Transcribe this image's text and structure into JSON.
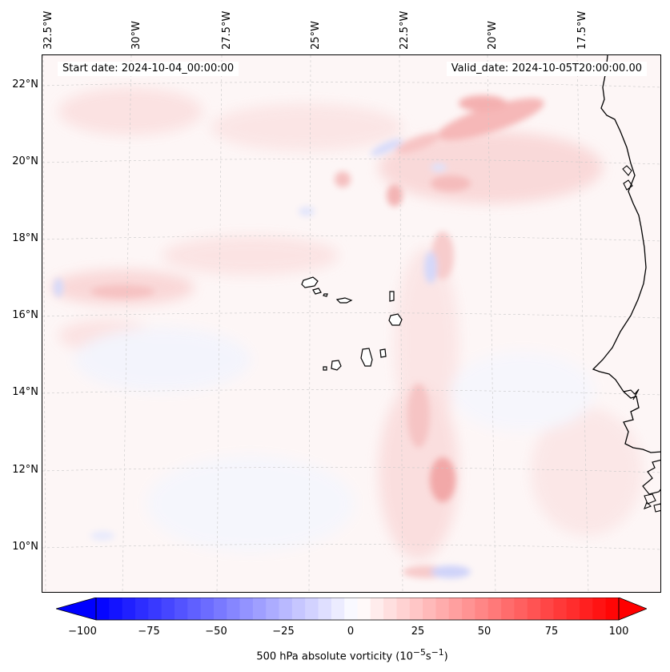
{
  "map": {
    "variable": "500 hPa absolute vorticity",
    "units_prefix": "500 hPa absolute vorticity (10",
    "units_exp1": "−5",
    "units_mid": "s",
    "units_exp2": "−1",
    "units_suffix": ")",
    "start_date_label": "Start date: 2024-10-04_00:00:00",
    "valid_date_label": "Valid_date: 2024-10-05T20:00:00.00",
    "longitude_labels": [
      "32.5°W",
      "30°W",
      "27.5°W",
      "25°W",
      "22.5°W",
      "20°W",
      "17.5°W"
    ],
    "latitude_labels": [
      "22°N",
      "20°N",
      "18°N",
      "16°N",
      "14°N",
      "12°N",
      "10°N"
    ],
    "colorbar": {
      "ticks": [
        "−100",
        "−75",
        "−50",
        "−25",
        "0",
        "25",
        "50",
        "75",
        "100"
      ],
      "min": -100,
      "max": 100,
      "negative_color": "#0000ff",
      "positive_color": "#ff0000",
      "extend": "both"
    },
    "colors": {
      "background": "#fdf6f6",
      "coastline": "#000000",
      "gridline": "#c8c8c8"
    },
    "features": [
      "West African coastline",
      "Cape Verde islands"
    ]
  }
}
